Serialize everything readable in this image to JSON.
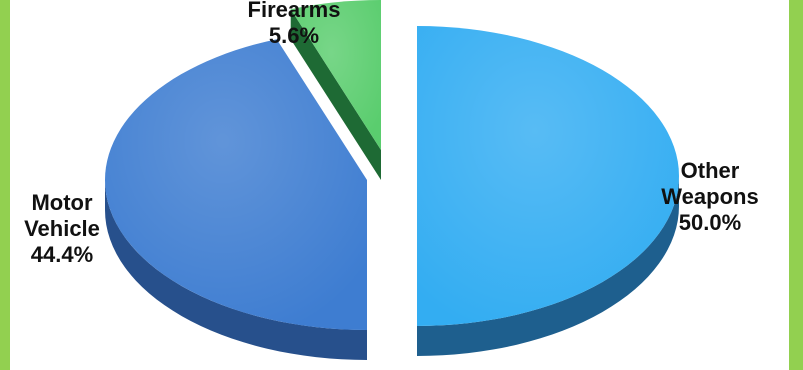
{
  "chart_data": {
    "type": "pie",
    "style": "3d-exploded",
    "title": "",
    "categories": [
      "Other Weapons",
      "Motor Vehicle",
      "Firearms"
    ],
    "values": [
      50.0,
      44.4,
      5.6
    ],
    "unit": "%",
    "labels": [
      {
        "lines": [
          "Other",
          "Weapons"
        ],
        "value_text": "50.0%"
      },
      {
        "lines": [
          "Motor",
          "Vehicle"
        ],
        "value_text": "44.4%"
      },
      {
        "lines": [
          "Firearms"
        ],
        "value_text": "5.6%"
      }
    ],
    "colors": [
      "#33adf2",
      "#3e7dd1",
      "#5acd6e"
    ],
    "side_colors": [
      "#1e5f8e",
      "#27508c",
      "#1e6a34"
    ],
    "legend": false,
    "background": "#92d050"
  }
}
